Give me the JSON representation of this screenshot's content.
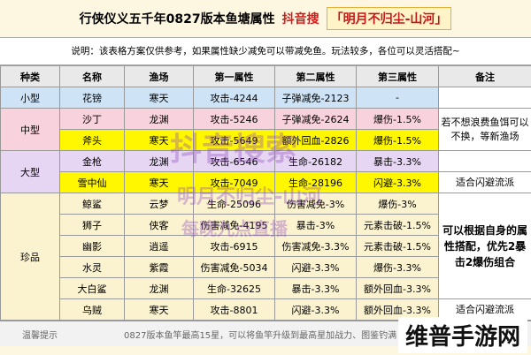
{
  "header": {
    "title": "行侠仪义五千年0827版本鱼塘属性",
    "search_label": "抖音搜",
    "account": "「明月不归尘-山河」"
  },
  "note": "说明：该表格方案仅供参考，如果属性缺少减免可以带减免鱼。玩法较多，各位可以灵活搭配~",
  "table": {
    "columns": [
      "种类",
      "名称",
      "渔场",
      "第一属性",
      "第二属性",
      "第三属性",
      "备注"
    ],
    "groups": [
      {
        "type": "小型",
        "rows": [
          [
            "花镑",
            "寒天",
            "攻击-4244",
            "子弹减免-2123",
            "-"
          ]
        ]
      },
      {
        "type": "中型",
        "rows": [
          [
            "沙丁",
            "龙渊",
            "攻击-5246",
            "子弹减免-2624",
            "爆伤-1.5%"
          ],
          [
            "斧头",
            "寒天",
            "攻击-5649",
            "额外回血-2826",
            "爆伤-1.5%"
          ]
        ],
        "remarks": [
          "若不想浪费鱼饵可以不换，等新渔场"
        ]
      },
      {
        "type": "大型",
        "rows": [
          [
            "金枪",
            "龙渊",
            "攻击-6546",
            "生命-26182",
            "暴击-3.3%"
          ],
          [
            "雪中仙",
            "寒天",
            "攻击-7049",
            "生命-28196",
            "闪避-3.3%"
          ]
        ],
        "remarks": [
          "适合闪避流派"
        ]
      },
      {
        "type": "珍品",
        "rows": [
          [
            "鲸鲨",
            "云梦",
            "生命-25096",
            "伤害减免-3%",
            "爆伤-3%"
          ],
          [
            "狮子",
            "侠客",
            "伤害减免-4195",
            "暴击-3%",
            "元素击破-1.5%"
          ],
          [
            "幽影",
            "逍遥",
            "攻击-6915",
            "伤害减免-3.3%",
            "元素击破-1.5%"
          ],
          [
            "水灵",
            "紫霞",
            "伤害减免-5034",
            "闪避-3.3%",
            "爆伤-3.3%"
          ],
          [
            "大白鲨",
            "龙渊",
            "生命-32625",
            "暴击-3.3%",
            "额外回血-3.3%"
          ],
          [
            "乌贼",
            "寒天",
            "攻击-8801",
            "闪避-3.3%",
            "额外回血-3.3%"
          ]
        ],
        "remarks": [
          "可以根据自身的属性搭配，优先2暴击2爆伤组合",
          "适合闪避流派"
        ]
      }
    ]
  },
  "footer": {
    "label": "温馨提示",
    "text": "0827版本鱼竿最高15星，可以将鱼竿升级到最高星加战力、图鉴钓满"
  },
  "watermarks": [
    "抖音搜索",
    "明月不归尘-山河",
    "每晚九点直播"
  ],
  "logo": "维普手游网"
}
